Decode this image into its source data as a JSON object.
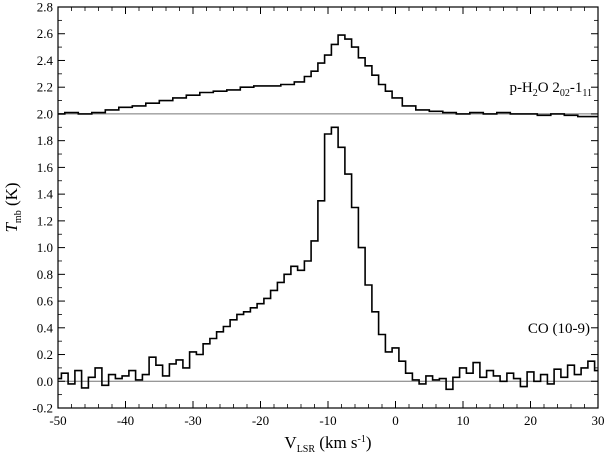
{
  "chart_data": {
    "type": "line",
    "title": "",
    "xlabel": {
      "main": "V",
      "sub": "LSR",
      "unit": " (km s",
      "sup": "-1",
      "close": ")"
    },
    "ylabel": {
      "main": "T",
      "sub": "mb",
      "unit": " (K)"
    },
    "xlim": [
      -50,
      30
    ],
    "ylim": [
      -0.2,
      2.8
    ],
    "xticks": [
      -50,
      -40,
      -30,
      -20,
      -10,
      0,
      10,
      20,
      30
    ],
    "yticks": [
      -0.2,
      0.0,
      0.2,
      0.4,
      0.6,
      0.8,
      1.0,
      1.2,
      1.4,
      1.6,
      1.8,
      2.0,
      2.2,
      2.4,
      2.6,
      2.8
    ],
    "ytick_labels": [
      "-0.2",
      "0.0",
      "0.2",
      "0.4",
      "0.6",
      "0.8",
      "1.0",
      "1.2",
      "1.4",
      "1.6",
      "1.8",
      "2.0",
      "2.2",
      "2.4",
      "2.6",
      "2.8"
    ],
    "grid": false,
    "style": "histogram-step",
    "baselines": [
      0.0,
      2.0
    ],
    "annotations": {
      "water": {
        "base": "p-H",
        "sub1": "2",
        "mid": "O 2",
        "sub2": "02",
        "dash": "-1",
        "sub3": "11"
      },
      "co": "CO (10-9)"
    },
    "series": [
      {
        "name": "p-H2O 2(02)-1(11)",
        "x": [
          -50,
          -48,
          -46,
          -44,
          -42,
          -40,
          -38,
          -36,
          -34,
          -32,
          -30,
          -28,
          -26,
          -24,
          -22,
          -20,
          -18,
          -16,
          -14,
          -13,
          -12,
          -11,
          -10,
          -9,
          -8,
          -7,
          -6,
          -5,
          -4,
          -3,
          -2,
          -1,
          0,
          2,
          4,
          6,
          8,
          10,
          12,
          14,
          16,
          18,
          20,
          22,
          24,
          26,
          28,
          30
        ],
        "y": [
          2.0,
          2.01,
          2.0,
          2.01,
          2.03,
          2.05,
          2.06,
          2.08,
          2.1,
          2.12,
          2.14,
          2.16,
          2.17,
          2.18,
          2.2,
          2.21,
          2.21,
          2.22,
          2.24,
          2.28,
          2.32,
          2.38,
          2.44,
          2.52,
          2.59,
          2.56,
          2.5,
          2.42,
          2.36,
          2.29,
          2.22,
          2.17,
          2.12,
          2.06,
          2.03,
          2.02,
          2.01,
          2.0,
          2.01,
          2.0,
          2.01,
          2.0,
          2.0,
          1.99,
          2.0,
          1.99,
          1.98,
          1.98
        ]
      },
      {
        "name": "CO (10-9)",
        "x": [
          -50,
          -49,
          -48,
          -47,
          -46,
          -45,
          -44,
          -43,
          -42,
          -41,
          -40,
          -39,
          -38,
          -37,
          -36,
          -35,
          -34,
          -33,
          -32,
          -31,
          -30,
          -29,
          -28,
          -27,
          -26,
          -25,
          -24,
          -23,
          -22,
          -21,
          -20,
          -19,
          -18,
          -17,
          -16,
          -15,
          -14,
          -13,
          -12,
          -11,
          -10,
          -9,
          -8,
          -7,
          -6,
          -5,
          -4,
          -3,
          -2,
          -1,
          0,
          1,
          2,
          3,
          4,
          5,
          6,
          7,
          8,
          9,
          10,
          11,
          12,
          13,
          14,
          15,
          16,
          17,
          18,
          19,
          20,
          21,
          22,
          23,
          24,
          25,
          26,
          27,
          28,
          29,
          30
        ],
        "y": [
          0.02,
          0.06,
          -0.02,
          0.08,
          -0.05,
          0.03,
          0.1,
          -0.03,
          0.05,
          0.02,
          0.04,
          0.08,
          0.01,
          0.05,
          0.18,
          0.12,
          0.04,
          0.13,
          0.16,
          0.1,
          0.22,
          0.2,
          0.28,
          0.32,
          0.37,
          0.41,
          0.46,
          0.5,
          0.52,
          0.55,
          0.58,
          0.62,
          0.68,
          0.74,
          0.8,
          0.86,
          0.83,
          0.9,
          1.05,
          1.35,
          1.85,
          1.9,
          1.75,
          1.55,
          1.3,
          1.0,
          0.72,
          0.52,
          0.35,
          0.22,
          0.25,
          0.15,
          0.06,
          0.01,
          -0.02,
          0.04,
          0.01,
          0.02,
          -0.06,
          0.03,
          0.1,
          0.06,
          0.14,
          0.03,
          0.08,
          0.04,
          0.0,
          0.06,
          0.02,
          -0.04,
          0.07,
          0.0,
          0.05,
          -0.02,
          0.09,
          0.03,
          0.12,
          0.05,
          0.1,
          0.15,
          0.08
        ]
      }
    ]
  }
}
